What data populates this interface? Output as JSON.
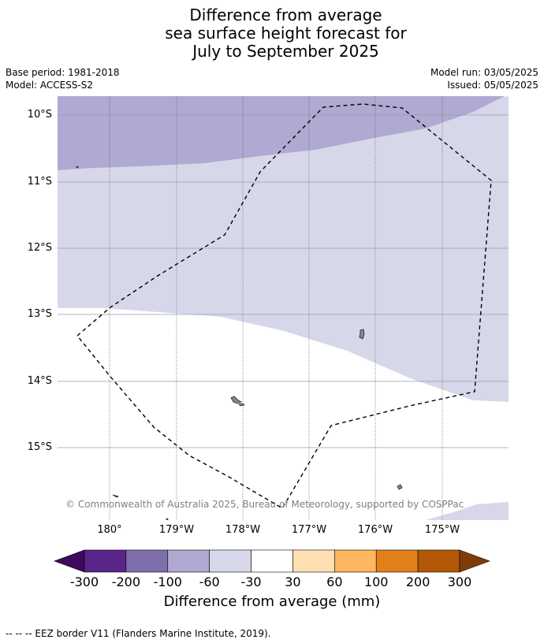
{
  "title": [
    "Difference from average",
    "sea surface height forecast for",
    "July to September 2025"
  ],
  "base_period": "Base period: 1981-2018",
  "model": "Model: ACCESS-S2",
  "model_run": "Model run: 03/05/2025",
  "issued": "Issued: 05/05/2025",
  "credit": "© Commonwealth of Australia 2025, Bureau of Meteorology, supported by COSPPac",
  "lat_labels": [
    "10°S",
    "11°S",
    "12°S",
    "13°S",
    "14°S",
    "15°S"
  ],
  "lon_labels": [
    "180°",
    "179°W",
    "178°W",
    "177°W",
    "176°W",
    "175°W"
  ],
  "colorbar": {
    "label": "Difference from average (mm)",
    "ticks": [
      "-300",
      "-200",
      "-100",
      "-60",
      "-30",
      "30",
      "60",
      "100",
      "200",
      "300"
    ],
    "colors": [
      "#3f0a5e",
      "#5a2588",
      "#7f6fad",
      "#b0a9d1",
      "#d7d7ea",
      "#ffffff",
      "#fee0b3",
      "#fcb760",
      "#e1801a",
      "#b35807",
      "#7f3c0a"
    ]
  },
  "footer": "--  --  -- EEZ border V11 (Flanders Marine Institute, 2019)."
}
